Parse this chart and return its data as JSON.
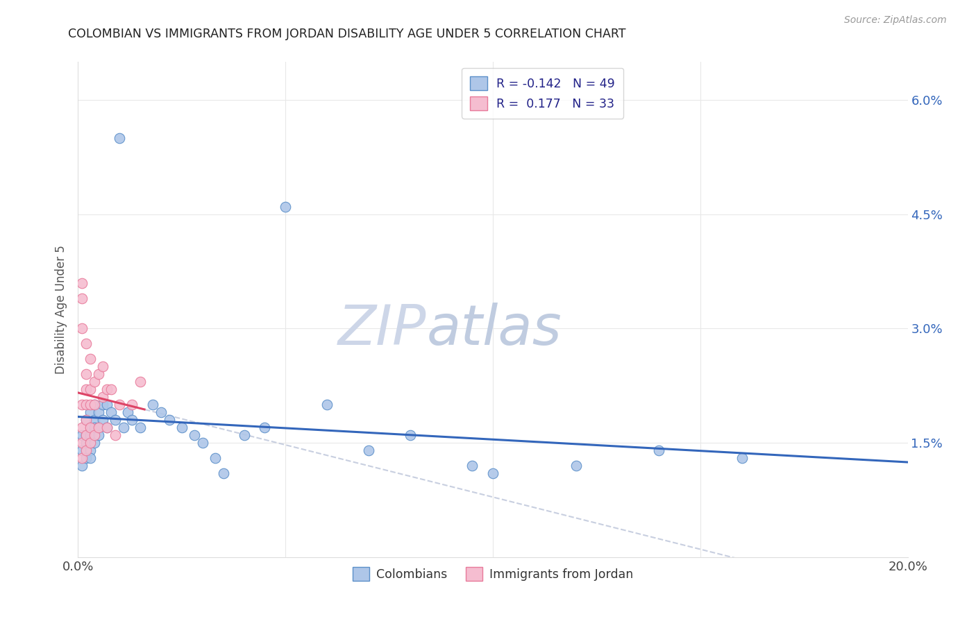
{
  "title": "COLOMBIAN VS IMMIGRANTS FROM JORDAN DISABILITY AGE UNDER 5 CORRELATION CHART",
  "source": "Source: ZipAtlas.com",
  "ylabel": "Disability Age Under 5",
  "xlim": [
    0.0,
    0.2
  ],
  "ylim": [
    0.0,
    0.065
  ],
  "xticks": [
    0.0,
    0.05,
    0.1,
    0.15,
    0.2
  ],
  "yticks": [
    0.0,
    0.015,
    0.03,
    0.045,
    0.06
  ],
  "xtick_labels": [
    "0.0%",
    "",
    "",
    "",
    "20.0%"
  ],
  "ytick_labels": [
    "",
    "1.5%",
    "3.0%",
    "4.5%",
    "6.0%"
  ],
  "legend_r_colombian": "-0.142",
  "legend_n_colombian": "49",
  "legend_r_jordan": "0.177",
  "legend_n_jordan": "33",
  "colombian_color": "#aec6e8",
  "colombian_edge": "#5b8fc9",
  "jordan_color": "#f5bdd0",
  "jordan_edge": "#e87a9a",
  "trend_colombian_color": "#3366bb",
  "trend_jordan_color": "#dd4466",
  "trend_dashed_color": "#c8cfe0",
  "watermark_zip_color": "#cdd6e8",
  "watermark_atlas_color": "#c0cce0",
  "background_color": "#ffffff",
  "grid_color": "#e8e8e8",
  "colombians_x": [
    0.001,
    0.001,
    0.001,
    0.002,
    0.002,
    0.002,
    0.002,
    0.003,
    0.003,
    0.003,
    0.003,
    0.003,
    0.004,
    0.004,
    0.004,
    0.004,
    0.005,
    0.005,
    0.005,
    0.006,
    0.006,
    0.007,
    0.007,
    0.008,
    0.009,
    0.01,
    0.011,
    0.012,
    0.013,
    0.015,
    0.018,
    0.02,
    0.022,
    0.025,
    0.028,
    0.03,
    0.033,
    0.035,
    0.04,
    0.045,
    0.05,
    0.06,
    0.07,
    0.08,
    0.095,
    0.1,
    0.12,
    0.14,
    0.16
  ],
  "colombians_y": [
    0.016,
    0.014,
    0.012,
    0.018,
    0.016,
    0.015,
    0.013,
    0.019,
    0.017,
    0.016,
    0.014,
    0.013,
    0.02,
    0.018,
    0.017,
    0.015,
    0.019,
    0.017,
    0.016,
    0.02,
    0.018,
    0.02,
    0.017,
    0.019,
    0.018,
    0.055,
    0.017,
    0.019,
    0.018,
    0.017,
    0.02,
    0.019,
    0.018,
    0.017,
    0.016,
    0.015,
    0.013,
    0.011,
    0.016,
    0.017,
    0.046,
    0.02,
    0.014,
    0.016,
    0.012,
    0.011,
    0.012,
    0.014,
    0.013
  ],
  "jordan_x": [
    0.001,
    0.001,
    0.001,
    0.001,
    0.001,
    0.001,
    0.001,
    0.002,
    0.002,
    0.002,
    0.002,
    0.002,
    0.002,
    0.002,
    0.003,
    0.003,
    0.003,
    0.003,
    0.003,
    0.004,
    0.004,
    0.004,
    0.005,
    0.005,
    0.006,
    0.006,
    0.007,
    0.007,
    0.008,
    0.009,
    0.01,
    0.013,
    0.015
  ],
  "jordan_y": [
    0.036,
    0.034,
    0.03,
    0.02,
    0.017,
    0.015,
    0.013,
    0.028,
    0.024,
    0.022,
    0.02,
    0.018,
    0.016,
    0.014,
    0.026,
    0.022,
    0.02,
    0.017,
    0.015,
    0.023,
    0.02,
    0.016,
    0.024,
    0.017,
    0.025,
    0.021,
    0.022,
    0.017,
    0.022,
    0.016,
    0.02,
    0.02,
    0.023
  ]
}
